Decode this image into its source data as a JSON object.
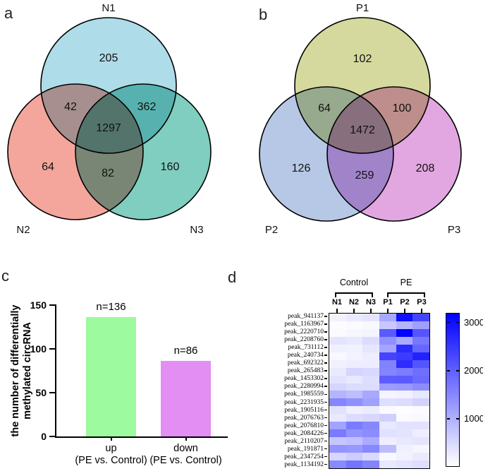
{
  "panel_letters": {
    "a": "a",
    "b": "b",
    "c": "c",
    "d": "d"
  },
  "chart_data": [
    {
      "type": "venn",
      "panel": "a",
      "sets": {
        "s1": "N1",
        "s2": "N2",
        "s3": "N3"
      },
      "colors": {
        "s1": "#aedce9",
        "s2": "#f4a69c",
        "s3": "#7fcec0"
      },
      "regions": {
        "n1": 205,
        "n2": 64,
        "n3": 160,
        "n12": 42,
        "n13": 362,
        "n23": 82,
        "n123": 1297
      }
    },
    {
      "type": "venn",
      "panel": "b",
      "sets": {
        "s1": "P1",
        "s2": "P2",
        "s3": "P3"
      },
      "colors": {
        "s1": "#d5d99e",
        "s2": "#b6c8e6",
        "s3": "#e2a7e0"
      },
      "regions": {
        "n1": 102,
        "n2": 126,
        "n3": 208,
        "n12": 64,
        "n13": 100,
        "n23": 259,
        "n123": 1472
      }
    },
    {
      "type": "bar",
      "panel": "c",
      "ylabel": "the number of differentially methylated circRNA",
      "ylabel_lines": [
        "the number of differentially",
        "methylated circRNA"
      ],
      "categories": [
        "up (PE vs. Control)",
        "down (PE vs. Control)"
      ],
      "category_lines": [
        [
          "up",
          "(PE vs. Control)"
        ],
        [
          "down",
          "(PE vs. Control)"
        ]
      ],
      "values": [
        136,
        86
      ],
      "bar_labels": [
        "n=136",
        "n=86"
      ],
      "bar_colors": [
        "#9efa9e",
        "#e28ef2"
      ],
      "ylim": [
        0,
        150
      ],
      "yticks": [
        150,
        100,
        50,
        0
      ],
      "grid": false
    },
    {
      "type": "heatmap",
      "panel": "d",
      "col_groups": [
        {
          "label": "Control",
          "columns": [
            "N1",
            "N2",
            "N3"
          ]
        },
        {
          "label": "PE",
          "columns": [
            "P1",
            "P2",
            "P3"
          ]
        }
      ],
      "columns": [
        "N1",
        "N2",
        "N3",
        "P1",
        "P2",
        "P3"
      ],
      "rows": [
        "peak_941137",
        "peak_1163967",
        "peak_2220710",
        "peak_2208760",
        "peak_731112",
        "peak_240734",
        "peak_692322",
        "peak_265483",
        "peak_1453302",
        "peak_2280994",
        "peak_1985559",
        "peak_2231935",
        "peak_1905116",
        "peak_2076763",
        "peak_2076810",
        "peak_2084226",
        "peak_2110207",
        "peak_191871",
        "peak_2347254",
        "peak_1134192"
      ],
      "values": [
        [
          160,
          260,
          340,
          1090,
          3010,
          2330
        ],
        [
          30,
          60,
          90,
          690,
          940,
          1210
        ],
        [
          60,
          110,
          140,
          2070,
          3180,
          2130
        ],
        [
          340,
          290,
          440,
          1390,
          1070,
          1710
        ],
        [
          190,
          160,
          310,
          1130,
          2660,
          1920
        ],
        [
          90,
          150,
          230,
          2350,
          2450,
          2770
        ],
        [
          190,
          230,
          230,
          1570,
          2650,
          2130
        ],
        [
          260,
          530,
          480,
          1540,
          1640,
          1820
        ],
        [
          350,
          290,
          410,
          2050,
          2070,
          1870
        ],
        [
          530,
          440,
          440,
          1240,
          1290,
          1440
        ],
        [
          930,
          820,
          1090,
          130,
          160,
          290
        ],
        [
          1530,
          1390,
          1190,
          410,
          440,
          570
        ],
        [
          360,
          190,
          240,
          60,
          30,
          60
        ],
        [
          290,
          440,
          490,
          590,
          50,
          90
        ],
        [
          1170,
          1660,
          1510,
          290,
          360,
          360
        ],
        [
          1670,
          1360,
          1440,
          390,
          340,
          210
        ],
        [
          720,
          790,
          1070,
          210,
          290,
          340
        ],
        [
          1340,
          1290,
          1490,
          840,
          190,
          110
        ],
        [
          510,
          640,
          460,
          90,
          160,
          260
        ],
        [
          1470,
          1740,
          1540,
          290,
          340,
          410
        ]
      ],
      "colorbar": {
        "min": 0,
        "max": 3200,
        "ticks": [
          3000,
          2000,
          1000
        ],
        "low_color": "#ffffff",
        "high_color": "#0000ff"
      }
    }
  ]
}
